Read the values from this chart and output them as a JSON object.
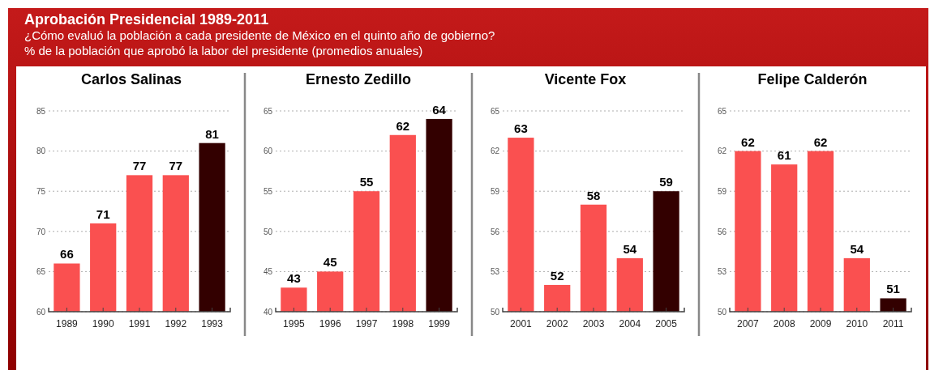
{
  "chart_data": [
    {
      "type": "bar",
      "title": "Carlos Salinas",
      "annotations": [
        "Aprobación Presidencial 1989-2011",
        "¿Cómo evaluó la población a cada presidente de México en el quinto año de gobierno?",
        "% de la población que aprobó la labor del presidente (promedios anuales)"
      ],
      "categories": [
        "1989",
        "1990",
        "1991",
        "1992",
        "1993"
      ],
      "values": [
        66,
        71,
        77,
        77,
        81
      ],
      "colors": [
        "#fa5050",
        "#fa5050",
        "#fa5050",
        "#fa5050",
        "#330000"
      ],
      "ylim": [
        60,
        85
      ],
      "yticks": [
        60,
        65,
        70,
        75,
        80,
        85
      ],
      "grid": "y",
      "data_labels": true
    },
    {
      "type": "bar",
      "title": "Ernesto Zedillo",
      "categories": [
        "1995",
        "1996",
        "1997",
        "1998",
        "1999"
      ],
      "values": [
        43,
        45,
        55,
        62,
        64
      ],
      "colors": [
        "#fa5050",
        "#fa5050",
        "#fa5050",
        "#fa5050",
        "#330000"
      ],
      "ylim": [
        40,
        65
      ],
      "yticks": [
        40,
        45,
        50,
        55,
        60,
        65
      ],
      "grid": "y",
      "data_labels": true
    },
    {
      "type": "bar",
      "title": "Vicente Fox",
      "categories": [
        "2001",
        "2002",
        "2003",
        "2004",
        "2005"
      ],
      "values": [
        63,
        52,
        58,
        54,
        59
      ],
      "colors": [
        "#fa5050",
        "#fa5050",
        "#fa5050",
        "#fa5050",
        "#330000"
      ],
      "ylim": [
        50,
        65
      ],
      "yticks": [
        50,
        53,
        56,
        59,
        62,
        65
      ],
      "grid": "y",
      "data_labels": true
    },
    {
      "type": "bar",
      "title": "Felipe Calderón",
      "categories": [
        "2007",
        "2008",
        "2009",
        "2010",
        "2011"
      ],
      "values": [
        62,
        61,
        62,
        54,
        51
      ],
      "colors": [
        "#fa5050",
        "#fa5050",
        "#fa5050",
        "#fa5050",
        "#330000"
      ],
      "ylim": [
        50,
        65
      ],
      "yticks": [
        50,
        53,
        56,
        59,
        62,
        65
      ],
      "grid": "y",
      "data_labels": true
    }
  ]
}
